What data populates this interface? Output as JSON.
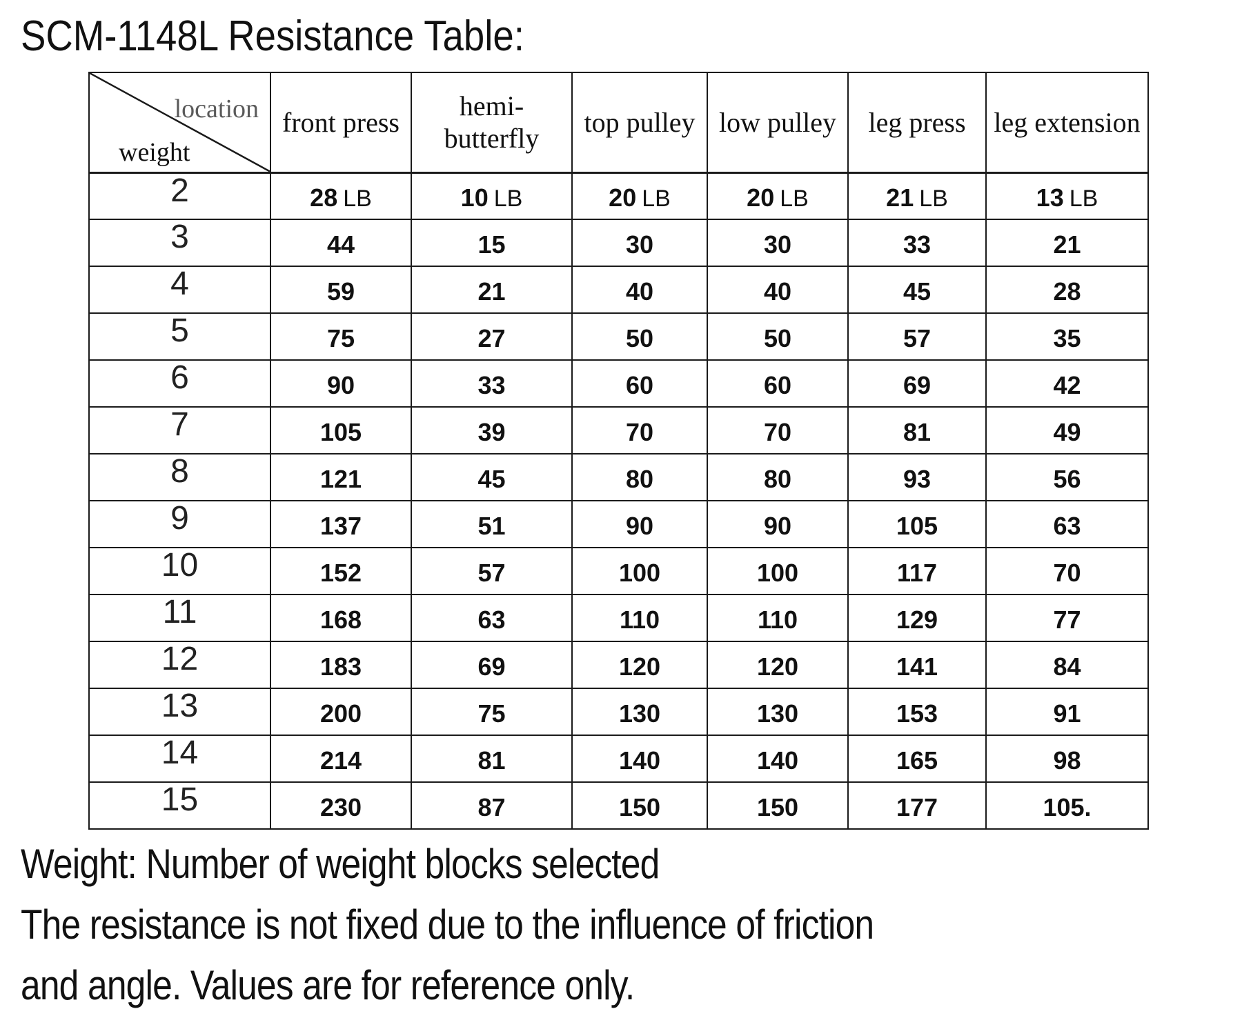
{
  "title": "SCM-1148L Resistance Table:",
  "table": {
    "corner": {
      "top_label": "location",
      "bottom_label": "weight"
    },
    "columns": [
      "front press",
      "hemi-butterfly",
      "top pulley",
      "low pulley",
      "leg press",
      "leg extension"
    ],
    "unit": "LB",
    "rows": [
      {
        "weight": "2",
        "show_unit": true,
        "values": [
          "28",
          "10",
          "20",
          "20",
          "21",
          "13"
        ]
      },
      {
        "weight": "3",
        "show_unit": false,
        "values": [
          "44",
          "15",
          "30",
          "30",
          "33",
          "21"
        ]
      },
      {
        "weight": "4",
        "show_unit": false,
        "values": [
          "59",
          "21",
          "40",
          "40",
          "45",
          "28"
        ]
      },
      {
        "weight": "5",
        "show_unit": false,
        "values": [
          "75",
          "27",
          "50",
          "50",
          "57",
          "35"
        ]
      },
      {
        "weight": "6",
        "show_unit": false,
        "values": [
          "90",
          "33",
          "60",
          "60",
          "69",
          "42"
        ]
      },
      {
        "weight": "7",
        "show_unit": false,
        "values": [
          "105",
          "39",
          "70",
          "70",
          "81",
          "49"
        ]
      },
      {
        "weight": "8",
        "show_unit": false,
        "values": [
          "121",
          "45",
          "80",
          "80",
          "93",
          "56"
        ]
      },
      {
        "weight": "9",
        "show_unit": false,
        "values": [
          "137",
          "51",
          "90",
          "90",
          "105",
          "63"
        ]
      },
      {
        "weight": "10",
        "show_unit": false,
        "values": [
          "152",
          "57",
          "100",
          "100",
          "117",
          "70"
        ]
      },
      {
        "weight": "11",
        "show_unit": false,
        "values": [
          "168",
          "63",
          "110",
          "110",
          "129",
          "77"
        ]
      },
      {
        "weight": "12",
        "show_unit": false,
        "values": [
          "183",
          "69",
          "120",
          "120",
          "141",
          "84"
        ]
      },
      {
        "weight": "13",
        "show_unit": false,
        "values": [
          "200",
          "75",
          "130",
          "130",
          "153",
          "91"
        ]
      },
      {
        "weight": "14",
        "show_unit": false,
        "values": [
          "214",
          "81",
          "140",
          "140",
          "165",
          "98"
        ]
      },
      {
        "weight": "15",
        "show_unit": false,
        "values": [
          "230",
          "87",
          "150",
          "150",
          "177",
          "105."
        ]
      }
    ]
  },
  "footnotes": [
    "Weight: Number of weight blocks selected",
    "The resistance is not fixed due to the influence of friction",
    "and angle. Values are for reference only."
  ],
  "colors": {
    "text": "#111111",
    "muted": "#5a5a5a",
    "border": "#1a1a1a",
    "background": "#ffffff"
  }
}
